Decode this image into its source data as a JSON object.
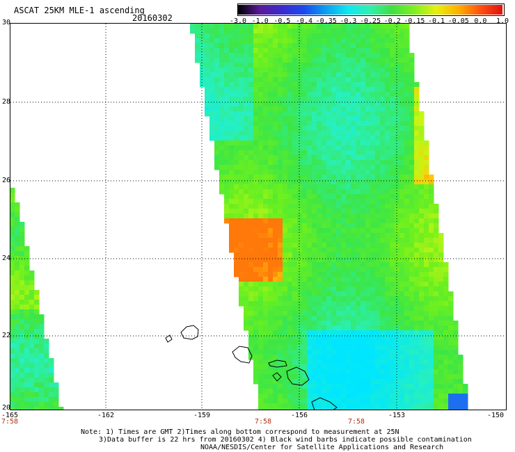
{
  "title": "ASCAT 25KM MLE-1 ascending",
  "date": "20160302",
  "colorbar": {
    "labels": [
      "-3.0",
      "-1.0",
      "-0.5",
      "-0.4",
      "-0.35",
      "-0.3",
      "-0.25",
      "-0.2",
      "-0.15",
      "-0.1",
      "-0.05",
      "0.0",
      "1.0"
    ],
    "colors": [
      "#000000",
      "#5a1a9a",
      "#3a2ad0",
      "#1a4af0",
      "#0aa0f0",
      "#10e8f0",
      "#30f0b0",
      "#40e040",
      "#80f020",
      "#e8f010",
      "#ffb000",
      "#ff5010",
      "#e01010"
    ]
  },
  "axes": {
    "lat_labels": [
      "30",
      "28",
      "26",
      "24",
      "22",
      "20"
    ],
    "lon_labels": [
      "-165",
      "-162",
      "-159",
      "-156",
      "-153",
      "-150"
    ],
    "time_labels": [
      "7:58",
      "7:58",
      "7:58"
    ]
  },
  "notes": [
    "Note: 1) Times are GMT 2)Times along bottom correspond to measurement at 25N",
    "3)Data buffer is 22 hrs from 20160302 4) Black wind barbs indicate possible contamination",
    "NOAA/NESDIS/Center for Satellite Applications and Research"
  ],
  "map_data": {
    "region": {
      "lon_range": [
        -165,
        -150
      ],
      "lat_range": [
        20,
        30
      ]
    },
    "swaths": [
      {
        "name": "west-swath",
        "palette": "green-cyan-yellow"
      },
      {
        "name": "east-swath",
        "palette": "green-cyan-yellow-orange"
      }
    ],
    "islands": [
      "Kauai",
      "Oahu",
      "Molokai",
      "Maui",
      "Hawaii"
    ]
  }
}
